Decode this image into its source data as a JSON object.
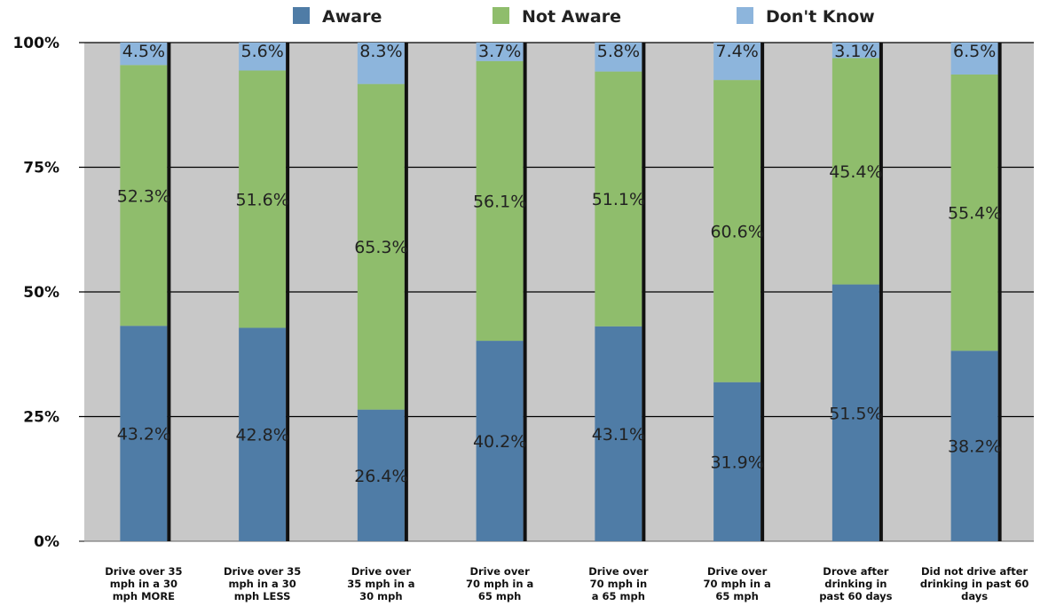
{
  "chart_data": {
    "type": "bar",
    "stacked": true,
    "title": "",
    "xlabel": "",
    "ylabel": "",
    "ylim": [
      0,
      100
    ],
    "y_ticks": [
      "0%",
      "25%",
      "50%",
      "75%",
      "100%"
    ],
    "grid": true,
    "legend_position": "top",
    "categories": [
      [
        "Drive over 35",
        "mph in a 30",
        "mph MORE"
      ],
      [
        "Drive over 35",
        "mph in a 30",
        "mph LESS"
      ],
      [
        "Drive over",
        "35 mph in a",
        "30 mph"
      ],
      [
        "Drive over",
        "70 mph in a",
        "65 mph"
      ],
      [
        "Drive over",
        "70 mph in",
        "a 65 mph"
      ],
      [
        "Drive over",
        "70 mph in a",
        "65 mph"
      ],
      [
        "Drove after",
        "drinking in",
        "past 60 days"
      ],
      [
        "Did not drive after",
        "drinking in past 60",
        "days"
      ]
    ],
    "series": [
      {
        "name": "Aware",
        "values": [
          43.2,
          42.8,
          26.4,
          40.2,
          43.1,
          31.9,
          51.5,
          38.2
        ],
        "labels": [
          "43.2%",
          "42.8%",
          "26.4%",
          "40.2%",
          "43.1%",
          "31.9%",
          "51.5%",
          "38.2%"
        ]
      },
      {
        "name": "Not Aware",
        "values": [
          52.3,
          51.6,
          65.3,
          56.1,
          51.1,
          60.6,
          45.4,
          55.4
        ],
        "labels": [
          "52.3%",
          "51.6%",
          "65.3%",
          "56.1%",
          "51.1%",
          "60.6%",
          "45.4%",
          "55.4%"
        ]
      },
      {
        "name": "Don't Know",
        "values": [
          4.5,
          5.6,
          8.3,
          3.7,
          5.8,
          7.4,
          3.1,
          6.5
        ],
        "labels": [
          "4.5%",
          "5.6%",
          "8.3%",
          "3.7%",
          "5.8%",
          "7.4%",
          "3.1%",
          "6.5%"
        ]
      }
    ],
    "colors": {
      "aware": "#4f7ca6",
      "not_aware": "#8fbd6c",
      "dont_know": "#8db5dc",
      "plot_background": "#c8c8c8",
      "gridline": "#000000",
      "bar_shadow": "#111111"
    }
  }
}
